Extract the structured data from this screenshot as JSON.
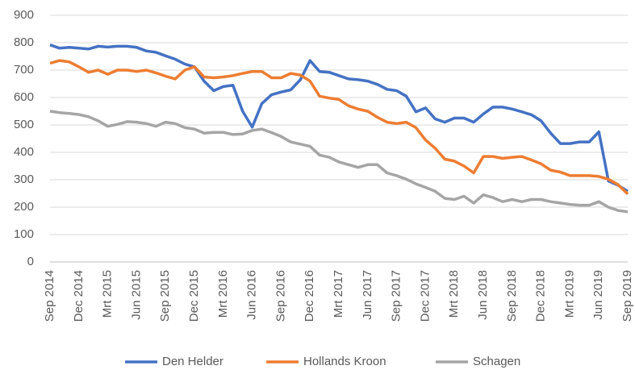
{
  "chart_data": {
    "type": "line",
    "categories": [
      "Sep 2014",
      null,
      null,
      "Dec 2014",
      null,
      null,
      "Mrt 2015",
      null,
      null,
      "Jun 2015",
      null,
      null,
      "Sep 2015",
      null,
      null,
      "Dec 2015",
      null,
      null,
      "Mrt 2016",
      null,
      null,
      "Jun 2016",
      null,
      null,
      "Sep 2016",
      null,
      null,
      "Dec 2016",
      null,
      null,
      "Mrt 2017",
      null,
      null,
      "Jun 2017",
      null,
      null,
      "Sep 2017",
      null,
      null,
      "Dec 2017",
      null,
      null,
      "Mrt 2018",
      null,
      null,
      "Jun 2018",
      null,
      null,
      "Sep 2018",
      null,
      null,
      "Dec 2018",
      null,
      null,
      "Mrt 2019",
      null,
      null,
      "Jun 2019",
      null,
      null,
      "Sep 2019"
    ],
    "series": [
      {
        "name": "Den Helder",
        "color": "#4472c4",
        "values": [
          792,
          780,
          783,
          780,
          777,
          787,
          784,
          787,
          787,
          783,
          770,
          765,
          752,
          740,
          722,
          712,
          660,
          625,
          640,
          645,
          550,
          492,
          578,
          610,
          620,
          628,
          665,
          735,
          695,
          692,
          680,
          668,
          665,
          660,
          648,
          630,
          625,
          605,
          548,
          562,
          522,
          510,
          525,
          525,
          510,
          540,
          565,
          565,
          558,
          548,
          537,
          515,
          470,
          432,
          432,
          438,
          438,
          475,
          295,
          280,
          258
        ]
      },
      {
        "name": "Hollands Kroon",
        "color": "#ed7d31",
        "values": [
          725,
          735,
          730,
          712,
          692,
          700,
          685,
          700,
          700,
          695,
          700,
          690,
          678,
          668,
          700,
          712,
          675,
          672,
          675,
          680,
          688,
          695,
          695,
          672,
          672,
          688,
          682,
          660,
          605,
          598,
          593,
          570,
          558,
          550,
          528,
          510,
          505,
          510,
          490,
          445,
          415,
          375,
          368,
          350,
          325,
          385,
          385,
          378,
          382,
          385,
          372,
          358,
          335,
          328,
          315,
          315,
          315,
          312,
          302,
          282,
          248
        ]
      },
      {
        "name": "Schagen",
        "color": "#a5a5a5",
        "values": [
          550,
          545,
          542,
          538,
          530,
          515,
          495,
          502,
          512,
          510,
          505,
          495,
          510,
          505,
          490,
          485,
          470,
          473,
          473,
          465,
          467,
          480,
          485,
          472,
          458,
          438,
          430,
          422,
          390,
          382,
          365,
          355,
          345,
          355,
          355,
          325,
          315,
          302,
          285,
          272,
          258,
          232,
          228,
          240,
          215,
          245,
          235,
          220,
          228,
          220,
          228,
          228,
          220,
          215,
          210,
          207,
          207,
          220,
          200,
          188,
          183
        ]
      }
    ],
    "ylim": [
      0,
      900
    ],
    "yticks": [
      0,
      100,
      200,
      300,
      400,
      500,
      600,
      700,
      800,
      900
    ],
    "grid": true,
    "legend": "bottom"
  }
}
